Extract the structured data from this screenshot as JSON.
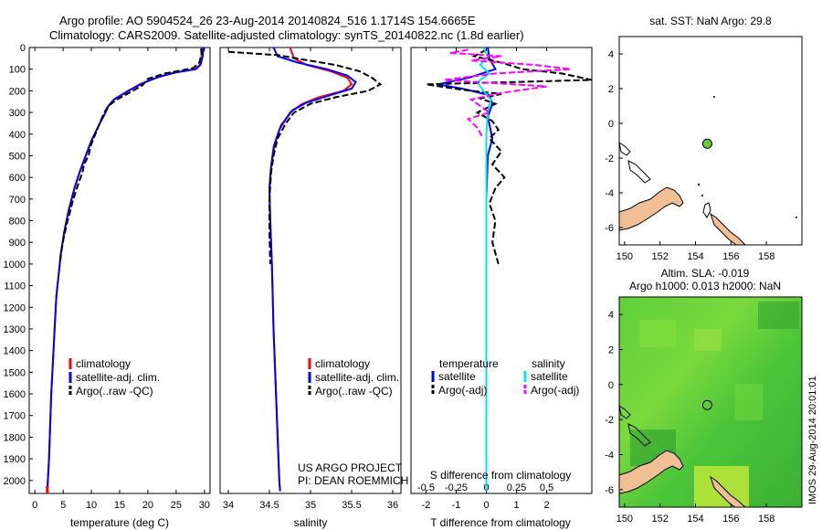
{
  "header": {
    "title_line1": "Argo profile: AO 5904524_26 23-Aug-2014 20140824_516 1.1714S 154.6665E",
    "title_line2": "Climatology: CARS2009. Satellite-adjusted climatology: synTS_20140822.nc (1.8d earlier)"
  },
  "colors": {
    "climatology": "#ff0000",
    "satellite": "#0000ff",
    "argo": "#000000",
    "sal_satellite": "#00e5ee",
    "sal_argo": "#ff00ff",
    "land": "#f0bf95",
    "float": "#66cc33"
  },
  "chart_data": [
    {
      "type": "line",
      "xlabel": "temperature (deg C)",
      "xticks": [
        0,
        5,
        10,
        15,
        20,
        25,
        30
      ],
      "xlim": [
        -1,
        31
      ],
      "ylim": [
        0,
        2060
      ],
      "yticks": [
        0,
        100,
        200,
        300,
        400,
        500,
        600,
        700,
        800,
        900,
        1000,
        1100,
        1200,
        1300,
        1400,
        1500,
        1600,
        1700,
        1800,
        1900,
        2000
      ],
      "legend": [
        "climatology",
        "satellite-adj. clim.",
        "Argo(..raw -QC)"
      ],
      "series": [
        {
          "name": "climatology",
          "color": "#ff0000",
          "style": "solid",
          "points": [
            [
              29.6,
              0
            ],
            [
              29.5,
              40
            ],
            [
              29.2,
              80
            ],
            [
              28.3,
              100
            ],
            [
              24,
              120
            ],
            [
              21.5,
              140
            ],
            [
              18.5,
              170
            ],
            [
              16,
              210
            ],
            [
              14,
              240
            ],
            [
              13,
              270
            ],
            [
              12.5,
              300
            ],
            [
              11.5,
              350
            ],
            [
              10,
              430
            ],
            [
              9,
              500
            ],
            [
              8,
              570
            ],
            [
              7,
              650
            ],
            [
              6,
              750
            ],
            [
              5.2,
              850
            ],
            [
              4.6,
              950
            ],
            [
              4.2,
              1050
            ],
            [
              3.8,
              1150
            ],
            [
              3.5,
              1300
            ],
            [
              3.2,
              1450
            ],
            [
              2.9,
              1600
            ],
            [
              2.7,
              1750
            ],
            [
              2.5,
              1900
            ],
            [
              2.3,
              2000
            ],
            [
              2.2,
              2050
            ]
          ]
        },
        {
          "name": "satellite-adj. clim.",
          "color": "#0000ff",
          "style": "solid",
          "points": [
            [
              29.8,
              0
            ],
            [
              29.7,
              40
            ],
            [
              29.3,
              80
            ],
            [
              28.5,
              100
            ],
            [
              25,
              115
            ],
            [
              22,
              135
            ],
            [
              19.5,
              160
            ],
            [
              16.5,
              200
            ],
            [
              14,
              240
            ],
            [
              13,
              270
            ],
            [
              12.5,
              300
            ],
            [
              11.5,
              350
            ],
            [
              10,
              430
            ],
            [
              9,
              500
            ],
            [
              8,
              570
            ],
            [
              7,
              650
            ],
            [
              6,
              750
            ],
            [
              5.2,
              850
            ],
            [
              4.6,
              950
            ],
            [
              4.2,
              1050
            ],
            [
              3.8,
              1150
            ],
            [
              3.5,
              1300
            ],
            [
              3.2,
              1450
            ],
            [
              2.9,
              1600
            ],
            [
              2.7,
              1750
            ],
            [
              2.5,
              1900
            ],
            [
              2.3,
              2000
            ],
            [
              2.2,
              2050
            ]
          ]
        },
        {
          "name": "Argo(..raw -QC)",
          "color": "#000000",
          "style": "dashed",
          "points": [
            [
              29.4,
              5
            ],
            [
              29.5,
              30
            ],
            [
              29.1,
              70
            ],
            [
              28,
              95
            ],
            [
              23,
              120
            ],
            [
              20,
              145
            ],
            [
              19,
              175
            ],
            [
              17,
              205
            ],
            [
              14.5,
              240
            ],
            [
              13,
              270
            ],
            [
              12.3,
              300
            ],
            [
              11.6,
              340
            ],
            [
              11,
              380
            ],
            [
              10.4,
              420
            ],
            [
              9.8,
              460
            ],
            [
              9.5,
              500
            ],
            [
              8.7,
              540
            ],
            [
              8.4,
              580
            ],
            [
              7.8,
              620
            ],
            [
              7.3,
              660
            ],
            [
              6.8,
              700
            ],
            [
              6.2,
              760
            ],
            [
              5.6,
              820
            ],
            [
              5.1,
              880
            ],
            [
              4.7,
              940
            ],
            [
              4.4,
              1000
            ]
          ]
        }
      ]
    },
    {
      "type": "line",
      "xlabel": "salinity",
      "xticks": [
        34,
        34.5,
        35,
        35.5,
        36
      ],
      "xlim": [
        33.9,
        36.1
      ],
      "ylim": [
        0,
        2060
      ],
      "legend": [
        "climatology",
        "satellite-adj. clim.",
        "Argo(..raw -QC)"
      ],
      "series": [
        {
          "name": "climatology",
          "color": "#ff0000",
          "style": "solid",
          "points": [
            [
              34.75,
              0
            ],
            [
              34.8,
              50
            ],
            [
              34.95,
              80
            ],
            [
              35.25,
              110
            ],
            [
              35.45,
              140
            ],
            [
              35.5,
              170
            ],
            [
              35.4,
              200
            ],
            [
              35.1,
              230
            ],
            [
              34.9,
              260
            ],
            [
              34.75,
              300
            ],
            [
              34.62,
              380
            ],
            [
              34.55,
              460
            ],
            [
              34.52,
              550
            ],
            [
              34.5,
              650
            ],
            [
              34.51,
              800
            ],
            [
              34.53,
              1000
            ],
            [
              34.55,
              1300
            ],
            [
              34.58,
              1600
            ],
            [
              34.6,
              1800
            ],
            [
              34.62,
              2000
            ],
            [
              34.63,
              2050
            ]
          ]
        },
        {
          "name": "satellite-adj. clim.",
          "color": "#0000ff",
          "style": "solid",
          "points": [
            [
              34.55,
              0
            ],
            [
              34.6,
              40
            ],
            [
              34.85,
              70
            ],
            [
              35.2,
              100
            ],
            [
              35.45,
              130
            ],
            [
              35.55,
              160
            ],
            [
              35.5,
              190
            ],
            [
              35.2,
              225
            ],
            [
              34.95,
              255
            ],
            [
              34.78,
              290
            ],
            [
              34.64,
              360
            ],
            [
              34.56,
              450
            ],
            [
              34.52,
              550
            ],
            [
              34.5,
              650
            ],
            [
              34.51,
              800
            ],
            [
              34.53,
              1000
            ],
            [
              34.55,
              1300
            ],
            [
              34.58,
              1600
            ],
            [
              34.6,
              1800
            ],
            [
              34.62,
              2000
            ],
            [
              34.63,
              2050
            ]
          ]
        },
        {
          "name": "Argo(..raw -QC)",
          "color": "#000000",
          "style": "dashed",
          "points": [
            [
              34.0,
              20
            ],
            [
              34.2,
              25
            ],
            [
              34.6,
              35
            ],
            [
              34.9,
              55
            ],
            [
              35.3,
              80
            ],
            [
              35.6,
              110
            ],
            [
              35.75,
              140
            ],
            [
              35.85,
              170
            ],
            [
              35.7,
              200
            ],
            [
              35.3,
              230
            ],
            [
              35.0,
              260
            ],
            [
              34.8,
              300
            ],
            [
              34.7,
              350
            ],
            [
              34.6,
              420
            ],
            [
              34.55,
              500
            ],
            [
              34.52,
              580
            ],
            [
              34.5,
              700
            ],
            [
              34.5,
              850
            ],
            [
              34.51,
              1000
            ]
          ]
        }
      ]
    },
    {
      "type": "line",
      "xlabel": "T difference from climatology",
      "xticks": [
        -2,
        -1,
        0,
        1,
        2
      ],
      "xlim": [
        -2.5,
        3.5
      ],
      "xlabel2": "S difference from climatology",
      "xticks2": [
        "-0.5",
        "-0.25",
        "0",
        "0.25",
        "0.5"
      ],
      "ylim": [
        0,
        2060
      ],
      "legend_temperature": "temperature",
      "legend_salinity": "salinity",
      "legend_entries": [
        "satellite",
        "Argo(-adj)",
        "satellite",
        "Argo(-adj)"
      ],
      "series": [
        {
          "name": "temperature satellite",
          "color": "#0000ff",
          "style": "solid",
          "points": [
            [
              0.05,
              0
            ],
            [
              0.1,
              50
            ],
            [
              0.3,
              100
            ],
            [
              -0.6,
              140
            ],
            [
              -1.6,
              170
            ],
            [
              -0.8,
              190
            ],
            [
              0.1,
              220
            ],
            [
              0.2,
              260
            ],
            [
              0.05,
              320
            ],
            [
              0.2,
              420
            ],
            [
              0.05,
              500
            ],
            [
              0,
              700
            ],
            [
              0,
              1100
            ],
            [
              0,
              1500
            ],
            [
              0,
              2050
            ]
          ]
        },
        {
          "name": "temperature Argo(-adj)",
          "color": "#000000",
          "style": "dashed",
          "points": [
            [
              0,
              10
            ],
            [
              -0.4,
              40
            ],
            [
              0.5,
              70
            ],
            [
              1.2,
              100
            ],
            [
              2.5,
              120
            ],
            [
              3.5,
              150
            ],
            [
              -2,
              170
            ],
            [
              -0.8,
              195
            ],
            [
              0.5,
              215
            ],
            [
              -0.2,
              235
            ],
            [
              0.3,
              260
            ],
            [
              -0.3,
              300
            ],
            [
              0.2,
              340
            ],
            [
              0.4,
              380
            ],
            [
              0.1,
              420
            ],
            [
              0.5,
              480
            ],
            [
              0.2,
              540
            ],
            [
              0.6,
              600
            ],
            [
              0.3,
              650
            ],
            [
              0.1,
              720
            ],
            [
              0.3,
              800
            ],
            [
              0.2,
              900
            ],
            [
              0.4,
              1000
            ]
          ]
        },
        {
          "name": "salinity satellite",
          "color": "#00e5ee",
          "style": "solid",
          "points": [
            [
              -0.1,
              0
            ],
            [
              0.05,
              40
            ],
            [
              -0.2,
              80
            ],
            [
              0.1,
              120
            ],
            [
              -0.3,
              160
            ],
            [
              -0.1,
              200
            ],
            [
              0.15,
              240
            ],
            [
              0.05,
              300
            ],
            [
              0,
              400
            ],
            [
              0,
              800
            ],
            [
              0,
              1200
            ],
            [
              0,
              1600
            ],
            [
              0,
              2050
            ]
          ]
        },
        {
          "name": "salinity Argo(-adj)",
          "color": "#ff00ff",
          "style": "dashed",
          "points": [
            [
              -0.6,
              10
            ],
            [
              -1.2,
              25
            ],
            [
              0.5,
              40
            ],
            [
              -0.5,
              60
            ],
            [
              1.6,
              80
            ],
            [
              2.8,
              100
            ],
            [
              0.3,
              120
            ],
            [
              -1.4,
              150
            ],
            [
              2,
              180
            ],
            [
              0.5,
              210
            ],
            [
              -0.5,
              240
            ],
            [
              -0.2,
              270
            ],
            [
              0.1,
              300
            ],
            [
              -0.6,
              330
            ],
            [
              -0.3,
              370
            ],
            [
              -0.1,
              420
            ]
          ]
        }
      ]
    },
    {
      "type": "map",
      "title": "sat. SST: NaN Argo: 29.8",
      "xticks": [
        150,
        152,
        154,
        156,
        158
      ],
      "yticks": [
        4,
        2,
        0,
        -2,
        -4,
        -6
      ],
      "xlim": [
        149.7,
        160
      ],
      "ylim": [
        -7,
        5
      ],
      "float_position": [
        154.6665,
        -1.1714
      ]
    },
    {
      "type": "map",
      "title_line1": "Altim. SLA: -0.019",
      "title_line2": "Argo h1000: 0.013 h2000: NaN",
      "xticks": [
        150,
        152,
        154,
        156,
        158
      ],
      "yticks": [
        4,
        2,
        0,
        -2,
        -4,
        -6
      ],
      "xlim": [
        149.7,
        160
      ],
      "ylim": [
        -7,
        5
      ],
      "float_position": [
        154.6665,
        -1.1714
      ],
      "stamp": "IMOS 29-Aug-2014 20:01:01"
    }
  ],
  "annotation": {
    "line1": "US ARGO PROJECT",
    "line2": "PI: DEAN ROEMMICH"
  }
}
